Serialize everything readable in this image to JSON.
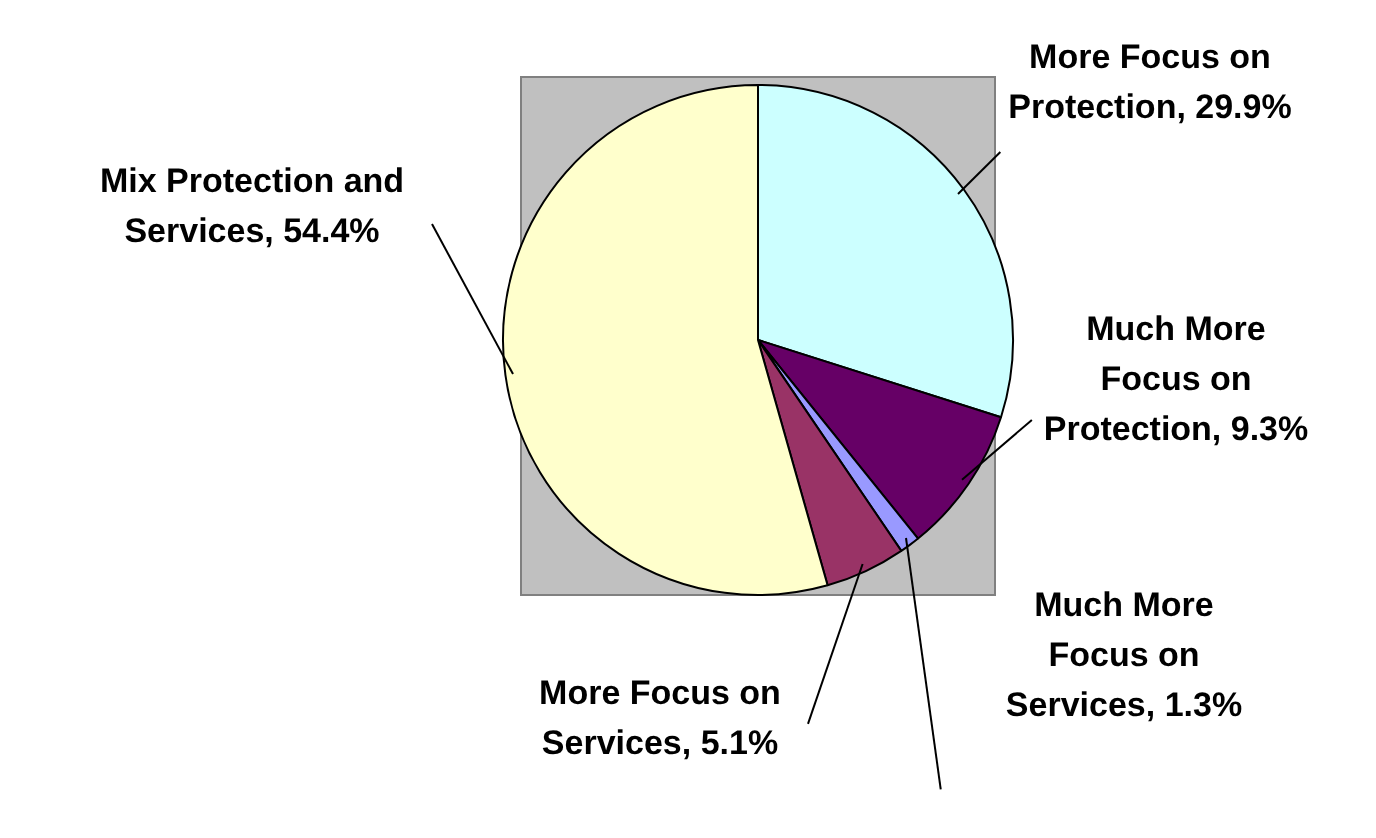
{
  "chart_data": {
    "type": "pie",
    "categories": [
      "More Focus on Protection",
      "Much More Focus on Protection",
      "Much More Focus on Services",
      "More Focus on Services",
      "Mix Protection and Services"
    ],
    "values": [
      29.9,
      9.3,
      1.3,
      5.1,
      54.4
    ],
    "value_labels": [
      "29.9%",
      "9.3%",
      "1.3%",
      "5.1%",
      "54.4%"
    ],
    "colors": [
      "#ccffff",
      "#660066",
      "#9999ff",
      "#993366",
      "#ffffcc"
    ],
    "legend": false
  }
}
